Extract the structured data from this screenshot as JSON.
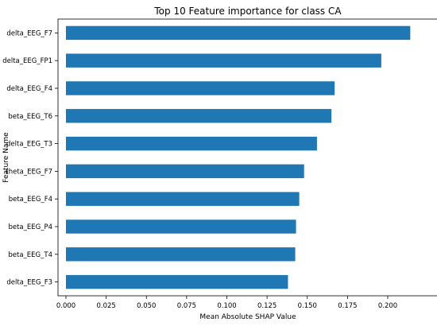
{
  "chart_data": {
    "type": "bar",
    "orientation": "horizontal",
    "title": "Top 10 Feature importance for class CA",
    "xlabel": "Mean Absolute SHAP Value",
    "ylabel": "Feature Name",
    "categories": [
      "delta_EEG_F7",
      "delta_EEG_FP1",
      "delta_EEG_F4",
      "beta_EEG_T6",
      "delta_EEG_T3",
      "theta_EEG_F7",
      "beta_EEG_F4",
      "beta_EEG_P4",
      "beta_EEG_T4",
      "delta_EEG_F3"
    ],
    "values": [
      0.214,
      0.196,
      0.167,
      0.165,
      0.156,
      0.148,
      0.145,
      0.143,
      0.1425,
      0.138
    ],
    "xlim": [
      0,
      0.225
    ],
    "xticks": [
      "0.000",
      "0.025",
      "0.050",
      "0.075",
      "0.100",
      "0.125",
      "0.150",
      "0.175",
      "0.200"
    ],
    "bar_color": "#1f77b4",
    "grid": false,
    "legend": "none"
  }
}
